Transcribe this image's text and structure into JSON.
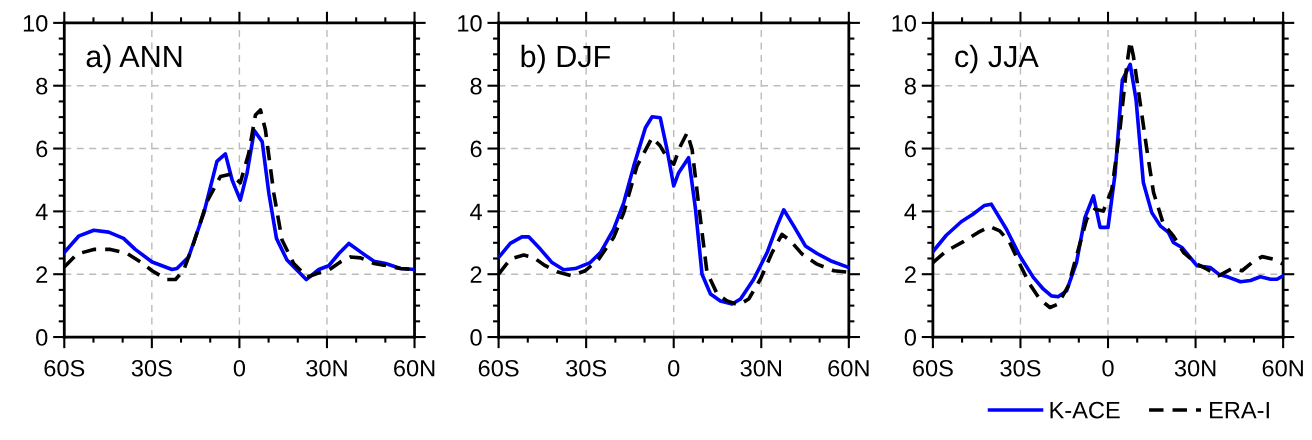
{
  "chart_data": [
    {
      "type": "line",
      "title": "a) ANN",
      "xlim": [
        -60,
        60
      ],
      "ylim": [
        0,
        10
      ],
      "xticks": [
        {
          "value": -60,
          "label": "60S"
        },
        {
          "value": -30,
          "label": "30S"
        },
        0,
        {
          "value": 30,
          "label": "30N"
        },
        {
          "value": 60,
          "label": "60N"
        }
      ],
      "yticks": [
        0,
        2,
        4,
        6,
        8,
        10
      ],
      "grid": true,
      "marker": "none",
      "series": [
        {
          "color": "#0000ff",
          "line_style": "solid",
          "x": [
            -60,
            -55.1,
            -49.9,
            -44.8,
            -39.7,
            -35.7,
            -29.9,
            -23.1,
            -21.4,
            -17.4,
            -12.2,
            -7.7,
            -4.8,
            -2.5,
            0.3,
            2.6,
            5.1,
            7.8,
            10.1,
            12.7,
            16.3,
            22.9,
            27.2,
            30.6,
            34.1,
            37.5,
            41.5,
            46.1,
            50.1,
            55.2,
            60
          ],
          "values": [
            2.69,
            3.21,
            3.4,
            3.34,
            3.14,
            2.79,
            2.39,
            2.15,
            2.18,
            2.55,
            3.94,
            5.59,
            5.83,
            5.0,
            4.36,
            5.21,
            6.57,
            6.22,
            4.57,
            3.14,
            2.45,
            1.83,
            2.15,
            2.27,
            2.66,
            2.98,
            2.71,
            2.41,
            2.34,
            2.18,
            2.15
          ]
        },
        {
          "color": "#000000",
          "line_style": "dashed",
          "x": [
            -60,
            -55.7,
            -49.9,
            -44.2,
            -38.5,
            -33.9,
            -29.9,
            -24.8,
            -21.9,
            -19.1,
            -15.7,
            -11.1,
            -6.5,
            -3.1,
            0.3,
            3.2,
            5.5,
            7.2,
            8.9,
            11.8,
            14.6,
            18.6,
            23.2,
            26.6,
            30.6,
            34.6,
            38.1,
            41.5,
            46.1,
            49.5,
            55.2,
            60
          ],
          "values": [
            2.23,
            2.64,
            2.79,
            2.79,
            2.66,
            2.39,
            2.11,
            1.83,
            1.83,
            2.13,
            2.98,
            4.31,
            5.11,
            5.18,
            4.91,
            5.85,
            7.07,
            7.23,
            6.6,
            4.57,
            3.09,
            2.34,
            1.91,
            2.02,
            2.13,
            2.39,
            2.55,
            2.52,
            2.34,
            2.29,
            2.18,
            2.15
          ]
        }
      ]
    },
    {
      "type": "line",
      "title": "b) DJF",
      "xlim": [
        -60,
        60
      ],
      "ylim": [
        0,
        10
      ],
      "xticks": [
        {
          "value": -60,
          "label": "60S"
        },
        {
          "value": -30,
          "label": "30S"
        },
        0,
        {
          "value": 30,
          "label": "30N"
        },
        {
          "value": 60,
          "label": "60N"
        }
      ],
      "yticks": [
        0,
        2,
        4,
        6,
        8,
        10
      ],
      "grid": true,
      "marker": "none",
      "series": [
        {
          "color": "#0000ff",
          "line_style": "solid",
          "x": [
            -60,
            -56,
            -52,
            -49.7,
            -45.7,
            -41.7,
            -37.7,
            -33.7,
            -28.6,
            -25.1,
            -20.6,
            -17.1,
            -13.7,
            -9.7,
            -7.4,
            -4.6,
            -2.3,
            0,
            1.7,
            5.1,
            7.4,
            9.7,
            12.6,
            16,
            20,
            22.9,
            27.4,
            32,
            35.4,
            37.7,
            41.1,
            45.1,
            49.1,
            53.7,
            60
          ],
          "values": [
            2.53,
            2.98,
            3.19,
            3.19,
            2.8,
            2.37,
            2.14,
            2.18,
            2.37,
            2.69,
            3.43,
            4.28,
            5.44,
            6.66,
            7.01,
            6.98,
            5.97,
            4.81,
            5.23,
            5.71,
            4.12,
            2.0,
            1.37,
            1.15,
            1.05,
            1.21,
            1.84,
            2.69,
            3.54,
            4.05,
            3.54,
            2.9,
            2.66,
            2.43,
            2.21
          ]
        },
        {
          "color": "#000000",
          "line_style": "dashed",
          "x": [
            -60,
            -56,
            -51.4,
            -48,
            -44,
            -40,
            -34.9,
            -30.3,
            -25.7,
            -20.6,
            -17.1,
            -12.6,
            -7.4,
            -4.6,
            -2.3,
            0,
            2.3,
            4.6,
            6.3,
            8.6,
            11.4,
            14.9,
            18.3,
            22.3,
            25.7,
            29.7,
            33.7,
            37.1,
            40,
            44,
            49.1,
            54.9,
            60
          ],
          "values": [
            2.0,
            2.48,
            2.61,
            2.53,
            2.27,
            2.08,
            1.95,
            2.11,
            2.48,
            3.17,
            3.96,
            5.44,
            6.35,
            6.08,
            5.71,
            5.5,
            6.08,
            6.5,
            5.97,
            4.17,
            2.06,
            1.37,
            1.15,
            1.02,
            1.21,
            1.84,
            2.69,
            3.27,
            3.06,
            2.64,
            2.32,
            2.11,
            2.06
          ]
        }
      ]
    },
    {
      "type": "line",
      "title": "c) JJA",
      "xlim": [
        -60,
        60
      ],
      "ylim": [
        0,
        10
      ],
      "xticks": [
        {
          "value": -60,
          "label": "60S"
        },
        {
          "value": -30,
          "label": "30S"
        },
        0,
        {
          "value": 30,
          "label": "30N"
        },
        {
          "value": 60,
          "label": "60N"
        }
      ],
      "yticks": [
        0,
        2,
        4,
        6,
        8,
        10
      ],
      "grid": true,
      "marker": "none",
      "legend": "bottom right",
      "series": [
        {
          "name": "K-ACE",
          "color": "#0000ff",
          "line_style": "solid",
          "x": [
            -60,
            -55.4,
            -50.3,
            -46.3,
            -42.3,
            -40,
            -34.8,
            -30.2,
            -25.6,
            -22.2,
            -19.4,
            -17.1,
            -14.2,
            -10.8,
            -7.9,
            -5,
            -2.7,
            0,
            2.4,
            4.9,
            7.6,
            9.6,
            12.1,
            15,
            17.9,
            20.7,
            22.4,
            25.3,
            30.5,
            35.1,
            37.9,
            41.4,
            45.4,
            48.8,
            52.2,
            55.7,
            57.9,
            60
          ],
          "values": [
            2.72,
            3.24,
            3.67,
            3.91,
            4.19,
            4.23,
            3.43,
            2.58,
            1.9,
            1.53,
            1.31,
            1.28,
            1.47,
            2.37,
            3.8,
            4.49,
            3.49,
            3.49,
            5.18,
            8.18,
            8.68,
            7.56,
            4.92,
            3.96,
            3.54,
            3.33,
            3.01,
            2.85,
            2.27,
            2.21,
            2.0,
            1.9,
            1.76,
            1.8,
            1.92,
            1.84,
            1.84,
            1.95
          ]
        },
        {
          "name": "ERA-I",
          "color": "#000000",
          "line_style": "dashed",
          "x": [
            -60,
            -55.4,
            -49.7,
            -44.5,
            -40.5,
            -37.1,
            -33.7,
            -30.2,
            -26.8,
            -23.4,
            -19.9,
            -17.1,
            -13.6,
            -10.8,
            -7.3,
            -4.5,
            -1.6,
            1.3,
            4.1,
            6.4,
            7.6,
            8.7,
            11,
            13.3,
            15.6,
            19,
            22.4,
            25.9,
            30.5,
            33.9,
            37.9,
            42.5,
            45.9,
            49.3,
            52.8,
            56.7,
            60
          ],
          "values": [
            2.37,
            2.74,
            3.03,
            3.33,
            3.52,
            3.38,
            3.01,
            2.32,
            1.68,
            1.21,
            0.94,
            1.05,
            1.63,
            2.58,
            3.75,
            4.07,
            4.01,
            4.7,
            6.61,
            8.62,
            9.42,
            8.94,
            7.46,
            5.97,
            4.6,
            3.59,
            3.22,
            2.69,
            2.32,
            2.16,
            1.95,
            2.18,
            2.11,
            2.37,
            2.56,
            2.48,
            2.32
          ]
        }
      ]
    }
  ]
}
